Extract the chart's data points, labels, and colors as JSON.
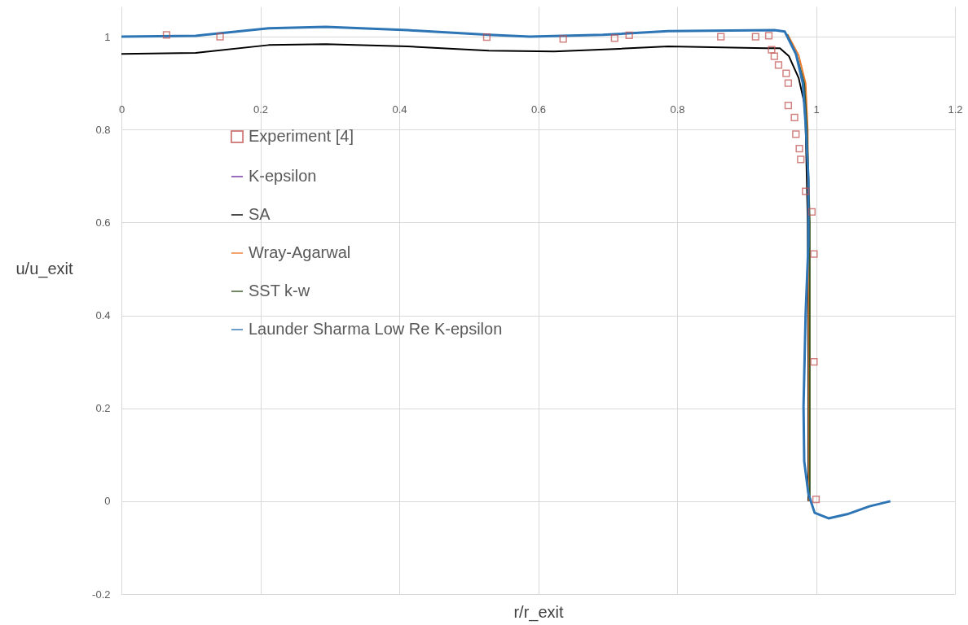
{
  "chart_data": {
    "type": "line",
    "xlabel": "r/r_exit",
    "ylabel": "u/u_exit",
    "xlim": [
      0,
      1.2
    ],
    "ylim": [
      -0.2,
      1.065
    ],
    "xticks": [
      0,
      0.2,
      0.4,
      0.6,
      0.8,
      1,
      1.2
    ],
    "yticks": [
      -0.2,
      0,
      0.2,
      0.4,
      0.6,
      0.8,
      1
    ],
    "grid": true,
    "legend": "left",
    "series": [
      {
        "name": "Experiment [4]",
        "type": "scatter",
        "marker": "square",
        "color": "#c0504d",
        "x": [
          0.065,
          0.142,
          0.526,
          0.636,
          0.71,
          0.731,
          0.863,
          0.913,
          0.932,
          0.936,
          0.94,
          0.946,
          0.957,
          0.96,
          0.96,
          0.969,
          0.971,
          0.976,
          0.978,
          0.985,
          0.994,
          0.997,
          0.997,
          1.0
        ],
        "values": [
          1.004,
          1.0,
          0.999,
          0.995,
          0.997,
          1.003,
          1.0,
          1.0,
          1.002,
          0.972,
          0.958,
          0.939,
          0.921,
          0.9,
          0.852,
          0.826,
          0.79,
          0.759,
          0.736,
          0.667,
          0.623,
          0.532,
          0.3,
          0.004
        ]
      },
      {
        "name": "K-epsilon",
        "color": "#7030a0"
      },
      {
        "name": "SA",
        "color": "#000000",
        "x": [
          0,
          0.107,
          0.212,
          0.294,
          0.412,
          0.529,
          0.623,
          0.717,
          0.787,
          0.928,
          0.948,
          0.961,
          0.975,
          0.983,
          0.985,
          0.988,
          0.989,
          0.989
        ],
        "values": [
          0.963,
          0.965,
          0.982,
          0.984,
          0.979,
          0.97,
          0.968,
          0.974,
          0.979,
          0.975,
          0.975,
          0.958,
          0.911,
          0.858,
          0.81,
          0.6,
          0.3,
          0.0
        ]
      },
      {
        "name": "Wray-Agarwal",
        "color": "#ed7d31",
        "x": [
          0.959,
          0.975,
          0.985,
          0.988,
          0.99,
          0.99
        ],
        "values": [
          1.005,
          0.96,
          0.9,
          0.8,
          0.3,
          0.0
        ]
      },
      {
        "name": "SST k-w",
        "color": "#375623",
        "x": [
          0.958,
          0.972,
          0.983,
          0.987,
          0.991,
          0.991,
          0.991
        ],
        "values": [
          1.005,
          0.96,
          0.9,
          0.8,
          0.6,
          0.3,
          0.0
        ]
      },
      {
        "name": "Launder Sharma Low Re K-epsilon",
        "color": "#2e75b6",
        "x": [
          0,
          0.107,
          0.212,
          0.294,
          0.412,
          0.529,
          0.588,
          0.693,
          0.787,
          0.94,
          0.955,
          0.971,
          0.981,
          0.985,
          0.989,
          0.989,
          0.985,
          0.982,
          0.983,
          0.989,
          0.998,
          1.018,
          1.045,
          1.077,
          1.107
        ],
        "values": [
          1.0,
          1.002,
          1.018,
          1.021,
          1.014,
          1.004,
          1.0,
          1.004,
          1.012,
          1.014,
          1.011,
          0.963,
          0.9,
          0.812,
          0.695,
          0.554,
          0.402,
          0.204,
          0.086,
          0.016,
          -0.025,
          -0.037,
          -0.028,
          -0.011,
          0.0
        ]
      }
    ]
  }
}
